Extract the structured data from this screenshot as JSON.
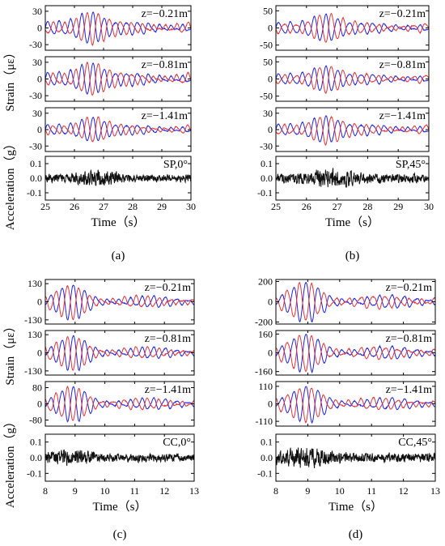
{
  "colors": {
    "series_a": "#2020e0",
    "series_b": "#e0353b",
    "acceleration": "#111111",
    "frame": "#000000"
  },
  "chart_data": [
    {
      "panel_label": "(a)",
      "type": "line",
      "xlabel": "Time（s）",
      "ylabel_strain": "Strain（με）",
      "ylabel_acceleration": "Acceleration（g）",
      "xlim": [
        25,
        30
      ],
      "xticks": [
        "25",
        "26",
        "27",
        "28",
        "29",
        "30"
      ],
      "subplots": [
        {
          "kind": "strain",
          "annotation": "z=−0.21m",
          "ylim": [
            -40,
            40
          ],
          "yticks": [
            "30",
            "0",
            "-30"
          ],
          "amplitude": 32,
          "peak_time": 26.55,
          "series_colors": [
            "#2020e0",
            "#e0353b"
          ]
        },
        {
          "kind": "strain",
          "annotation": "z=−0.81m",
          "ylim": [
            -40,
            40
          ],
          "yticks": [
            "30",
            "0",
            "-30"
          ],
          "amplitude": 32,
          "peak_time": 26.55,
          "series_colors": [
            "#2020e0",
            "#e0353b"
          ]
        },
        {
          "kind": "strain",
          "annotation": "z=−1.41m",
          "ylim": [
            -40,
            40
          ],
          "yticks": [
            "30",
            "0",
            "-30"
          ],
          "amplitude": 25,
          "peak_time": 26.6,
          "series_colors": [
            "#2020e0",
            "#e0353b"
          ]
        },
        {
          "kind": "acceleration",
          "annotation": "SP,0°",
          "ylim": [
            -0.15,
            0.15
          ],
          "yticks": [
            "0.1",
            "0.0",
            "-0.1"
          ],
          "amplitude": 0.08,
          "peak_time": 26.8
        }
      ]
    },
    {
      "panel_label": "(b)",
      "type": "line",
      "xlabel": "Time（s）",
      "xlim": [
        25,
        30
      ],
      "xticks": [
        "25",
        "26",
        "27",
        "28",
        "29",
        "30"
      ],
      "subplots": [
        {
          "kind": "strain",
          "annotation": "z=−0.21m",
          "ylim": [
            -65,
            65
          ],
          "yticks": [
            "50",
            "0",
            "-50"
          ],
          "amplitude": 45,
          "peak_time": 26.6,
          "series_colors": [
            "#2020e0",
            "#e0353b"
          ]
        },
        {
          "kind": "strain",
          "annotation": "z=−0.81m",
          "ylim": [
            -65,
            65
          ],
          "yticks": [
            "50",
            "0",
            "-50"
          ],
          "amplitude": 42,
          "peak_time": 26.6,
          "series_colors": [
            "#2020e0",
            "#e0353b"
          ]
        },
        {
          "kind": "strain",
          "annotation": "z=−1.41m",
          "ylim": [
            -40,
            40
          ],
          "yticks": [
            "30",
            "0",
            "-30"
          ],
          "amplitude": 28,
          "peak_time": 26.6,
          "series_colors": [
            "#2020e0",
            "#e0353b"
          ]
        },
        {
          "kind": "acceleration",
          "annotation": "SP,45°",
          "ylim": [
            -0.15,
            0.15
          ],
          "yticks": [
            "0.1",
            "0.0",
            "-0.1"
          ],
          "amplitude": 0.1,
          "peak_time": 26.8
        }
      ]
    },
    {
      "panel_label": "(c)",
      "type": "line",
      "xlabel": "Time（s）",
      "ylabel_strain": "Strain（με）",
      "ylabel_acceleration": "Acceleration（g）",
      "xlim": [
        8,
        13
      ],
      "xticks": [
        "8",
        "9",
        "10",
        "11",
        "12",
        "13"
      ],
      "subplots": [
        {
          "kind": "strain",
          "annotation": "z=−0.21m",
          "ylim": [
            -160,
            160
          ],
          "yticks": [
            "130",
            "0",
            "-130"
          ],
          "amplitude": 115,
          "peak_time": 8.9,
          "series_colors": [
            "#2020e0",
            "#e0353b"
          ]
        },
        {
          "kind": "strain",
          "annotation": "z=−0.81m",
          "ylim": [
            -160,
            160
          ],
          "yticks": [
            "130",
            "0",
            "-130"
          ],
          "amplitude": 115,
          "peak_time": 8.95,
          "series_colors": [
            "#2020e0",
            "#e0353b"
          ]
        },
        {
          "kind": "strain",
          "annotation": "z=−1.41m",
          "ylim": [
            -110,
            110
          ],
          "yticks": [
            "80",
            "0",
            "-80"
          ],
          "amplitude": 80,
          "peak_time": 8.95,
          "series_colors": [
            "#2020e0",
            "#e0353b"
          ]
        },
        {
          "kind": "acceleration",
          "annotation": "CC,0°",
          "ylim": [
            -0.15,
            0.15
          ],
          "yticks": [
            "0.1",
            "0.0",
            "-0.1"
          ],
          "amplitude": 0.08,
          "peak_time": 8.8
        }
      ]
    },
    {
      "panel_label": "(d)",
      "type": "line",
      "xlabel": "Time（s）",
      "xlim": [
        8,
        13
      ],
      "xticks": [
        "8",
        "9",
        "10",
        "11",
        "12",
        "13"
      ],
      "subplots": [
        {
          "kind": "strain",
          "annotation": "z=−0.21m",
          "ylim": [
            -220,
            220
          ],
          "yticks": [
            "200",
            "0",
            "-200"
          ],
          "amplitude": 180,
          "peak_time": 8.95,
          "series_colors": [
            "#2020e0",
            "#e0353b"
          ]
        },
        {
          "kind": "strain",
          "annotation": "z=−0.81m",
          "ylim": [
            -190,
            190
          ],
          "yticks": [
            "160",
            "0",
            "-160"
          ],
          "amplitude": 150,
          "peak_time": 8.95,
          "series_colors": [
            "#2020e0",
            "#e0353b"
          ]
        },
        {
          "kind": "strain",
          "annotation": "z=−1.41m",
          "ylim": [
            -140,
            140
          ],
          "yticks": [
            "110",
            "0",
            "-110"
          ],
          "amplitude": 105,
          "peak_time": 9.0,
          "series_colors": [
            "#2020e0",
            "#e0353b"
          ]
        },
        {
          "kind": "acceleration",
          "annotation": "CC,45°",
          "ylim": [
            -0.15,
            0.15
          ],
          "yticks": [
            "0.1",
            "0.0",
            "-0.1"
          ],
          "amplitude": 0.1,
          "peak_time": 8.9
        }
      ]
    }
  ]
}
